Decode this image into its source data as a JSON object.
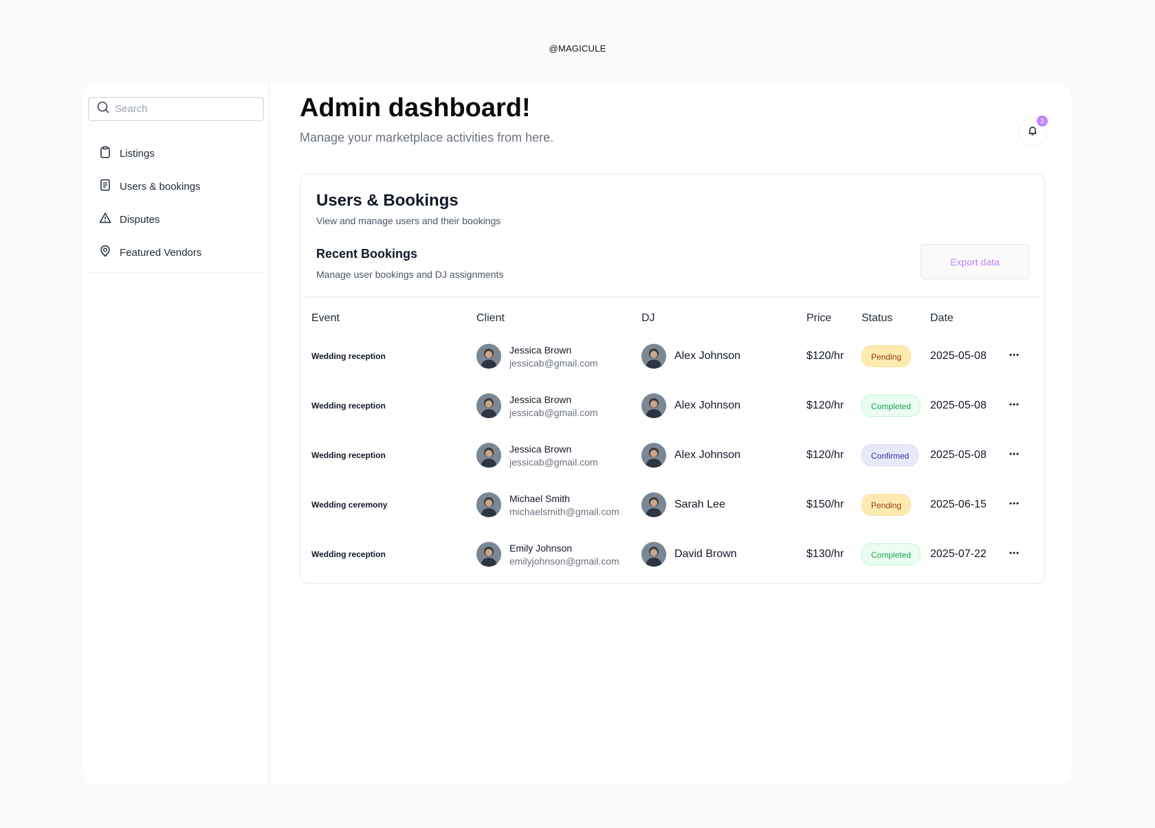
{
  "brand": "@MAGICULE",
  "sidebar": {
    "search_placeholder": "Search",
    "items": [
      {
        "label": "Listings",
        "icon": "clipboard-icon"
      },
      {
        "label": "Users & bookings",
        "icon": "document-list-icon"
      },
      {
        "label": "Disputes",
        "icon": "warning-triangle-icon"
      },
      {
        "label": "Featured Vendors",
        "icon": "badge-pin-icon"
      }
    ]
  },
  "header": {
    "title": "Admin dashboard!",
    "subtitle": "Manage your marketplace activities from here.",
    "notification_count": "2"
  },
  "card": {
    "title": "Users & Bookings",
    "subtitle": "View and manage users and their bookings",
    "section_title": "Recent Bookings",
    "section_subtitle": "Manage user bookings and DJ assignments",
    "export_label": "Export data"
  },
  "table": {
    "columns": [
      "Event",
      "Client",
      "DJ",
      "Price",
      "Status",
      "Date"
    ],
    "rows": [
      {
        "event": "Wedding reception",
        "client_name": "Jessica Brown",
        "client_email": "jessicab@gmail.com",
        "dj": "Alex Johnson",
        "price": "$120/hr",
        "status": "Pending",
        "status_kind": "pending",
        "date": "2025-05-08"
      },
      {
        "event": "Wedding reception",
        "client_name": "Jessica Brown",
        "client_email": "jessicab@gmail.com",
        "dj": "Alex Johnson",
        "price": "$120/hr",
        "status": "Completed",
        "status_kind": "completed",
        "date": "2025-05-08"
      },
      {
        "event": "Wedding reception",
        "client_name": "Jessica Brown",
        "client_email": "jessicab@gmail.com",
        "dj": "Alex Johnson",
        "price": "$120/hr",
        "status": "Confirmed",
        "status_kind": "confirmed",
        "date": "2025-05-08"
      },
      {
        "event": "Wedding ceremony",
        "client_name": "Michael Smith",
        "client_email": "michaelsmith@gmail.com",
        "dj": "Sarah Lee",
        "price": "$150/hr",
        "status": "Pending",
        "status_kind": "pending",
        "date": "2025-06-15"
      },
      {
        "event": "Wedding reception",
        "client_name": "Emily Johnson",
        "client_email": "emilyjohnson@gmail.com",
        "dj": "David Brown",
        "price": "$130/hr",
        "status": "Completed",
        "status_kind": "completed",
        "date": "2025-07-22"
      }
    ]
  },
  "colors": {
    "accent": "#c084fc",
    "pending_bg": "#fdeab0",
    "completed_bg": "#ecfdf3",
    "confirmed_bg": "#e8e8fb"
  }
}
